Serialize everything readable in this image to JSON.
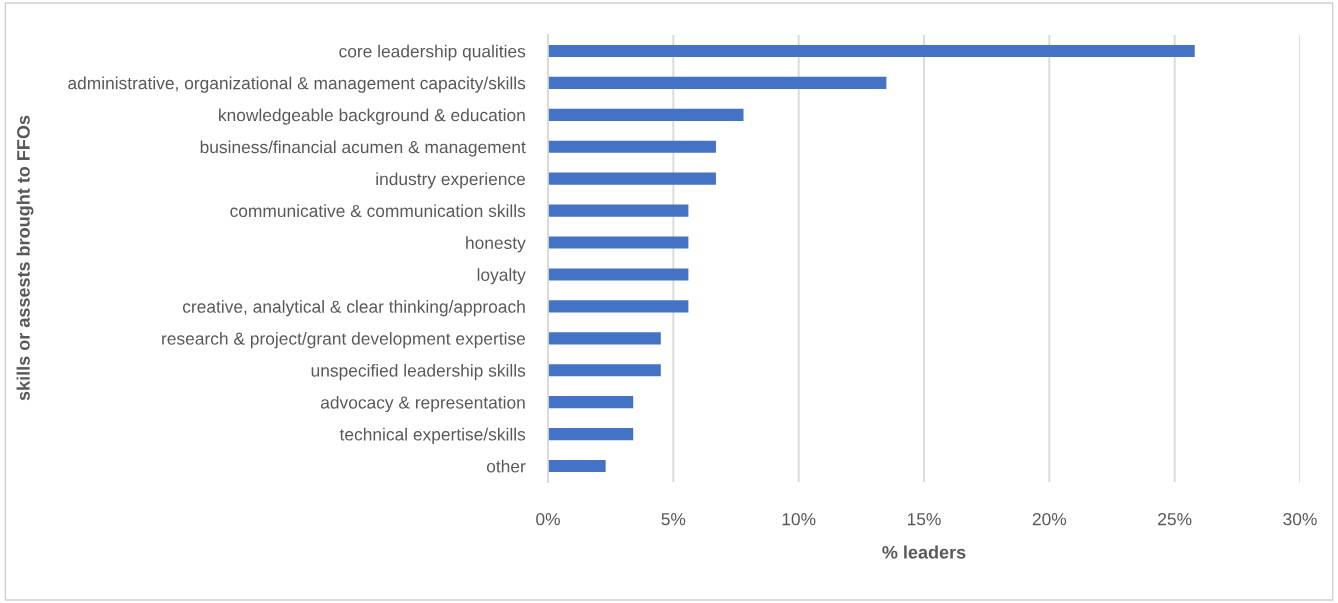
{
  "chart_data": {
    "type": "bar",
    "orientation": "horizontal",
    "xlabel": "% leaders",
    "ylabel": "skills or assests brought to FFOs",
    "categories": [
      "core leadership qualities",
      "administrative, organizational & management capacity/skills",
      "knowledgeable background & education",
      "business/financial acumen & management",
      "industry experience",
      "communicative & communication skills",
      "honesty",
      "loyalty",
      "creative, analytical & clear thinking/approach",
      "research & project/grant development expertise",
      "unspecified leadership skills",
      "advocacy & representation",
      "technical expertise/skills",
      "other"
    ],
    "values": [
      25.8,
      13.5,
      7.8,
      6.7,
      6.7,
      5.6,
      5.6,
      5.6,
      5.6,
      4.5,
      4.5,
      3.4,
      3.4,
      2.3
    ],
    "color": "#4472c4",
    "xlim": [
      0,
      30
    ],
    "xticks": [
      {
        "value": 0,
        "label": "0%"
      },
      {
        "value": 5,
        "label": "5%"
      },
      {
        "value": 10,
        "label": "10%"
      },
      {
        "value": 15,
        "label": "15%"
      },
      {
        "value": 20,
        "label": "20%"
      },
      {
        "value": 25,
        "label": "25%"
      },
      {
        "value": 30,
        "label": "30%"
      }
    ],
    "grid": "x"
  }
}
